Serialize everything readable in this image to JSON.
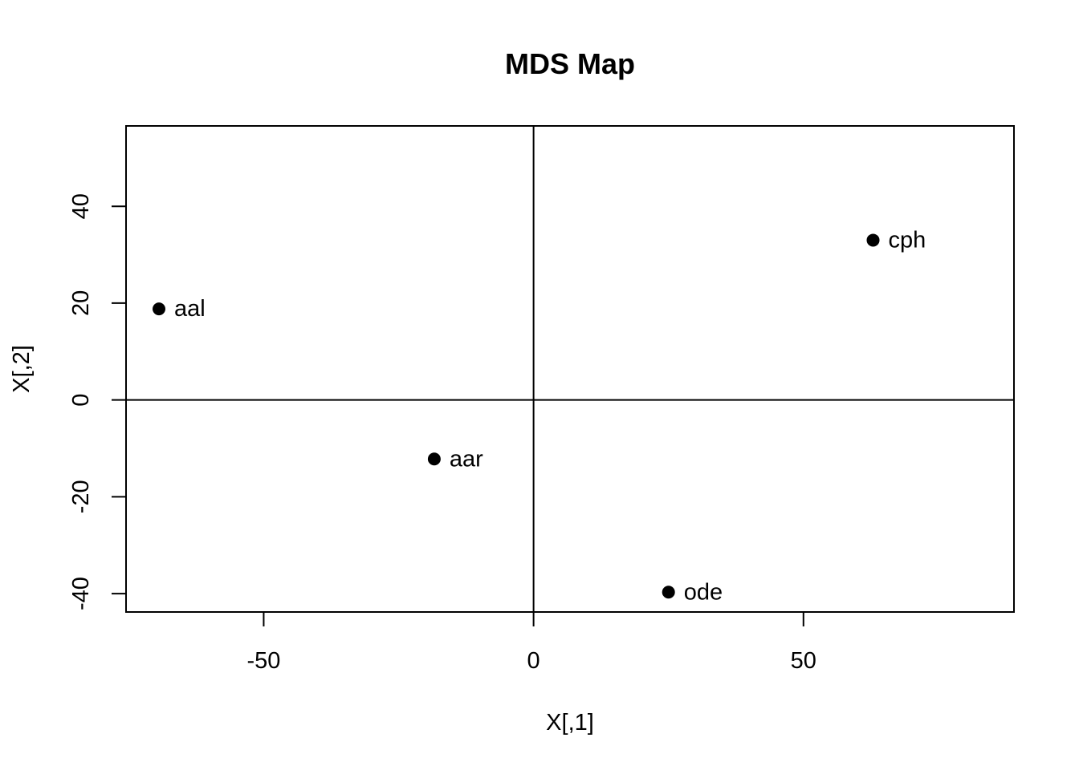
{
  "chart_data": {
    "type": "scatter",
    "title": "MDS Map",
    "xlabel": "X[,1]",
    "ylabel": "X[,2]",
    "xlim": [
      -75.5,
      89
    ],
    "ylim": [
      -43.8,
      56.6
    ],
    "xticks": [
      -50,
      0,
      50
    ],
    "yticks": [
      -40,
      -20,
      0,
      20,
      40
    ],
    "reference_lines": {
      "h": 0,
      "v": 0
    },
    "grid": false,
    "point_color": "#000000",
    "points": [
      {
        "label": "aal",
        "x": -69.4,
        "y": 18.8
      },
      {
        "label": "aar",
        "x": -18.4,
        "y": -12.2
      },
      {
        "label": "cph",
        "x": 62.9,
        "y": 33.0
      },
      {
        "label": "ode",
        "x": 25.0,
        "y": -39.7
      }
    ]
  }
}
